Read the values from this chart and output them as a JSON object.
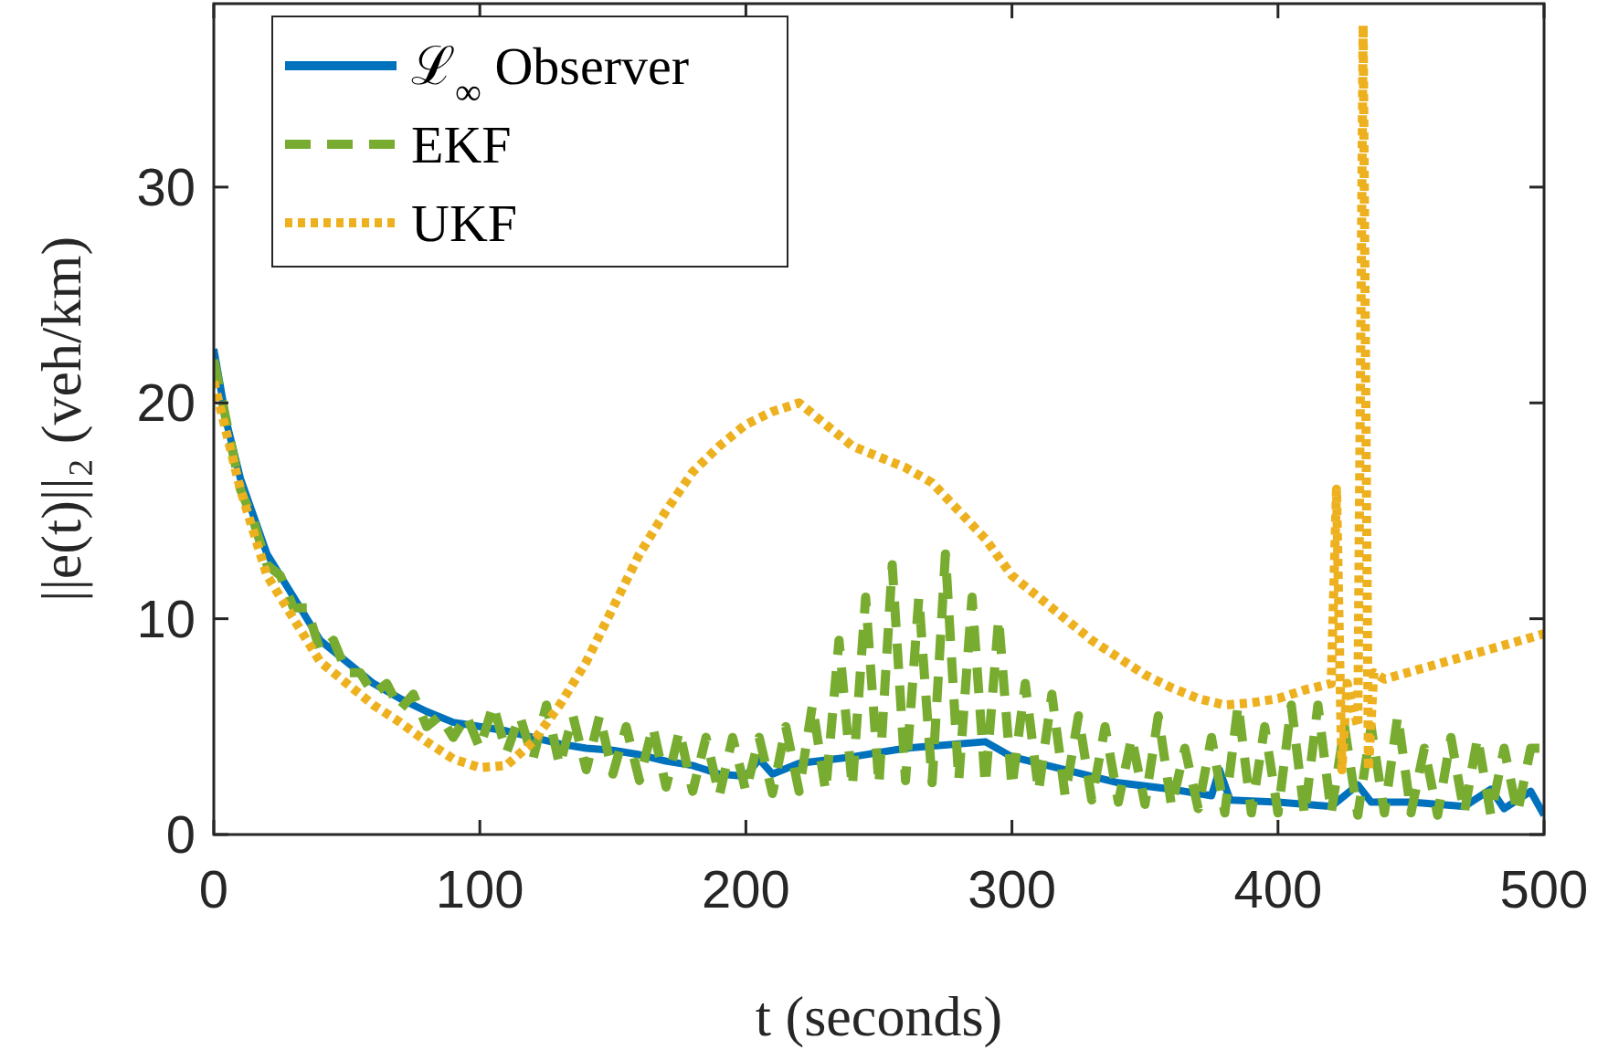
{
  "chart_data": {
    "type": "line",
    "xlabel": "t (seconds)",
    "ylabel": "||e(t)||₂ (veh/km)",
    "xlim": [
      0,
      500
    ],
    "ylim": [
      0,
      38.5
    ],
    "xticks": [
      0,
      100,
      200,
      300,
      400,
      500
    ],
    "yticks": [
      0,
      10,
      20,
      30
    ],
    "grid": false,
    "legend": "top left",
    "marker": "none",
    "series": [
      {
        "name": "ℒ$_{∞}$ Observer",
        "color": "#0072bd",
        "line_style": "solid",
        "x": [
          0,
          5,
          10,
          20,
          30,
          40,
          50,
          60,
          70,
          80,
          90,
          100,
          110,
          120,
          130,
          140,
          150,
          160,
          170,
          180,
          190,
          200,
          205,
          210,
          220,
          240,
          260,
          280,
          290,
          300,
          320,
          340,
          360,
          375,
          378,
          382,
          400,
          420,
          430,
          435,
          450,
          470,
          480,
          485,
          495,
          500
        ],
        "values": [
          22.5,
          19,
          16.5,
          13,
          11,
          9,
          8,
          7,
          6.3,
          5.7,
          5.2,
          5,
          4.8,
          4.5,
          4.2,
          4,
          3.9,
          3.7,
          3.4,
          3.2,
          2.8,
          2.7,
          3.5,
          2.8,
          3.3,
          3.6,
          4,
          4.2,
          4.3,
          3.6,
          3,
          2.4,
          2.1,
          1.8,
          3,
          1.6,
          1.5,
          1.3,
          2.3,
          1.5,
          1.5,
          1.3,
          2.1,
          1.2,
          2,
          0.9
        ]
      },
      {
        "name": "EKF",
        "color": "#77ac30",
        "line_style": "dashed",
        "x": [
          0,
          5,
          10,
          15,
          20,
          25,
          30,
          35,
          40,
          45,
          50,
          55,
          60,
          65,
          70,
          75,
          80,
          85,
          90,
          95,
          100,
          105,
          110,
          115,
          120,
          125,
          130,
          135,
          140,
          145,
          150,
          155,
          160,
          165,
          170,
          175,
          180,
          185,
          190,
          195,
          200,
          205,
          210,
          215,
          220,
          225,
          230,
          235,
          240,
          245,
          250,
          255,
          260,
          265,
          270,
          275,
          280,
          285,
          290,
          295,
          300,
          305,
          310,
          315,
          320,
          325,
          330,
          335,
          340,
          345,
          350,
          355,
          360,
          365,
          370,
          375,
          380,
          385,
          390,
          395,
          400,
          405,
          410,
          415,
          420,
          425,
          430,
          435,
          440,
          445,
          450,
          455,
          460,
          465,
          470,
          475,
          480,
          485,
          490,
          495,
          500
        ],
        "values": [
          22,
          19,
          16,
          14.5,
          12.5,
          12,
          10.5,
          10.5,
          8.5,
          9,
          7.5,
          7.5,
          6.5,
          7,
          5.8,
          6.5,
          5,
          5.5,
          4.5,
          5.5,
          4,
          6,
          3.8,
          5.5,
          3.5,
          6,
          3.2,
          5.5,
          3,
          5.5,
          2.8,
          5,
          2.5,
          5,
          2.2,
          4.8,
          2,
          4.5,
          1.8,
          4.5,
          2,
          4.5,
          1.9,
          5,
          2,
          6,
          2,
          9,
          2.2,
          11,
          2.3,
          12.5,
          2.5,
          11,
          2.4,
          13,
          2.5,
          11,
          2.3,
          10,
          2.2,
          7,
          2,
          6.5,
          1.8,
          5.5,
          1.6,
          5,
          1.5,
          4.5,
          1.4,
          5.5,
          1.3,
          4,
          1.2,
          4.5,
          1,
          6,
          1,
          5,
          1,
          6,
          0.9,
          6,
          1,
          5,
          0.9,
          5,
          1,
          5.5,
          1,
          4,
          0.9,
          4.5,
          1,
          4.5,
          0.9,
          4,
          1,
          4,
          4
        ]
      },
      {
        "name": "UKF",
        "color": "#edb120",
        "line_style": "dotted",
        "x": [
          0,
          10,
          20,
          30,
          40,
          50,
          60,
          70,
          80,
          90,
          100,
          110,
          120,
          130,
          140,
          150,
          160,
          170,
          180,
          190,
          200,
          210,
          220,
          230,
          240,
          250,
          260,
          270,
          280,
          290,
          300,
          310,
          320,
          330,
          340,
          350,
          360,
          370,
          380,
          390,
          400,
          410,
          420,
          422,
          424,
          426,
          430,
          432,
          434,
          436,
          440,
          460,
          480,
          500
        ],
        "values": [
          21,
          16,
          12,
          10,
          8,
          7,
          6,
          5.2,
          4.3,
          3.5,
          3.1,
          3.2,
          4.3,
          6,
          8,
          10.5,
          13,
          15,
          16.8,
          18,
          19,
          19.6,
          20,
          19,
          18,
          17.5,
          17,
          16.3,
          15,
          13.7,
          12,
          11,
          10,
          9,
          8.2,
          7.4,
          6.8,
          6.3,
          6,
          6.1,
          6.3,
          6.7,
          7,
          16,
          3,
          7,
          5,
          37.5,
          3,
          7.5,
          7.2,
          7.9,
          8.6,
          9.3
        ]
      }
    ]
  }
}
